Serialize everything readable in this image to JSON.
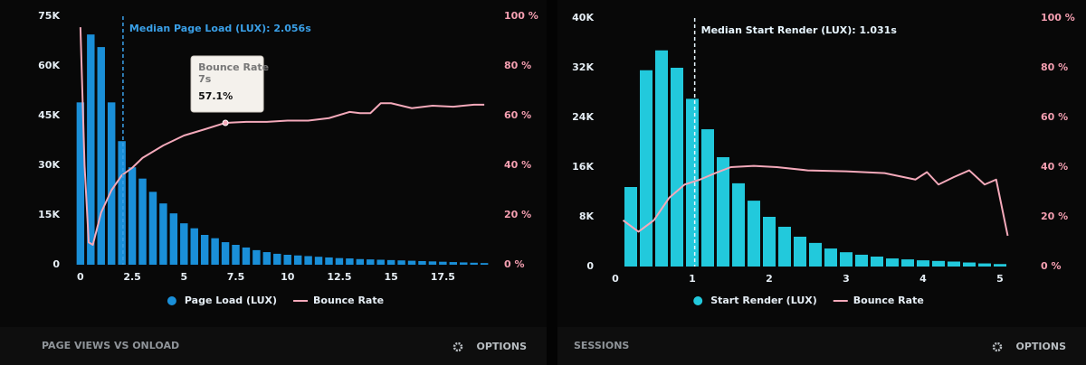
{
  "chart_data": [
    {
      "type": "histogram",
      "bins": [
        -0.25,
        0.25,
        0.75,
        1.25,
        1.75,
        2.25,
        2.75,
        3.25,
        3.75,
        4.25,
        4.75,
        5.25,
        5.75,
        6.25,
        6.75,
        7.25,
        7.75,
        8.25,
        8.75,
        9.25,
        9.75,
        10.25,
        10.75,
        11.25,
        11.75,
        12.25,
        12.75,
        13.25,
        13.75,
        14.25,
        14.75,
        15.25,
        15.75,
        16.25,
        16.75,
        17.25,
        17.75,
        18.25,
        18.75,
        19.25,
        19.75
      ],
      "xlim": [
        -0.3,
        19.8
      ],
      "xticks": [
        0,
        2.5,
        5,
        7.5,
        10,
        12.5,
        15,
        17.5
      ],
      "ylim": [
        0,
        75000
      ],
      "yticks": [
        {
          "value": 0,
          "label": "0"
        },
        {
          "value": 15000,
          "label": "15K"
        },
        {
          "value": 30000,
          "label": "30K"
        },
        {
          "value": 45000,
          "label": "45K"
        },
        {
          "value": 60000,
          "label": "60K"
        },
        {
          "value": 75000,
          "label": "75K"
        }
      ],
      "y2lim": [
        0,
        100
      ],
      "y2ticks": [
        {
          "value": 0,
          "label": "0 %"
        },
        {
          "value": 20,
          "label": "20 %"
        },
        {
          "value": 40,
          "label": "40 %"
        },
        {
          "value": 60,
          "label": "60 %"
        },
        {
          "value": 80,
          "label": "80 %"
        },
        {
          "value": 100,
          "label": "100 %"
        }
      ],
      "series": [
        {
          "name": "Page Load (LUX)",
          "color": "#1a8fd8",
          "values": [
            49000,
            69500,
            65700,
            49000,
            37300,
            29400,
            26000,
            22000,
            18500,
            15500,
            12500,
            11000,
            9000,
            8000,
            6800,
            6000,
            5200,
            4400,
            3800,
            3300,
            3000,
            2800,
            2600,
            2400,
            2200,
            2000,
            1900,
            1700,
            1600,
            1500,
            1400,
            1300,
            1200,
            1100,
            1000,
            900,
            800,
            700,
            600,
            500
          ]
        },
        {
          "name": "Bounce Rate",
          "color": "#f4a9ba",
          "axis": "y2",
          "x": [
            0,
            0.2,
            0.4,
            0.6,
            1,
            1.5,
            2,
            2.5,
            3,
            4,
            5,
            6,
            7,
            8,
            9,
            10,
            11,
            12,
            13,
            13.5,
            14,
            14.5,
            15,
            16,
            17,
            18,
            19,
            19.5
          ],
          "values": [
            95.6,
            40,
            9,
            8,
            21,
            30,
            36,
            39,
            43,
            48,
            52,
            54.5,
            57.1,
            57.5,
            57.5,
            58,
            58,
            59,
            61.5,
            61,
            61,
            65,
            65,
            63,
            64,
            63.6,
            64.4,
            64.4
          ]
        }
      ],
      "median": {
        "value": 2.056,
        "label": "Median Page Load (LUX): 2.056s"
      },
      "tooltip": {
        "title": "Bounce Rate",
        "x": {
          "value": 7,
          "label": "7s"
        },
        "value": {
          "value": 57.1,
          "label": "57.1%"
        }
      },
      "footer": "PAGE VIEWS VS ONLOAD",
      "options": "OPTIONS"
    },
    {
      "type": "histogram",
      "bins": [
        0.1,
        0.3,
        0.5,
        0.7,
        0.9,
        1.1,
        1.3,
        1.5,
        1.7,
        1.9,
        2.1,
        2.3,
        2.5,
        2.7,
        2.9,
        3.1,
        3.3,
        3.5,
        3.7,
        3.9,
        4.1,
        4.3,
        4.5,
        4.7,
        4.9,
        5.1
      ],
      "xlim": [
        -0.1,
        5.3
      ],
      "xticks": [
        0,
        1,
        2,
        3,
        4,
        5
      ],
      "ylim": [
        0,
        40000
      ],
      "yticks": [
        {
          "value": 0,
          "label": "0"
        },
        {
          "value": 8000,
          "label": "8K"
        },
        {
          "value": 16000,
          "label": "16K"
        },
        {
          "value": 24000,
          "label": "24K"
        },
        {
          "value": 32000,
          "label": "32K"
        },
        {
          "value": 40000,
          "label": "40K"
        }
      ],
      "y2lim": [
        0,
        100
      ],
      "y2ticks": [
        {
          "value": 0,
          "label": "0 %"
        },
        {
          "value": 20,
          "label": "20 %"
        },
        {
          "value": 40,
          "label": "40 %"
        },
        {
          "value": 60,
          "label": "60 %"
        },
        {
          "value": 80,
          "label": "80 %"
        },
        {
          "value": 100,
          "label": "100 %"
        }
      ],
      "series": [
        {
          "name": "Start Render (LUX)",
          "color": "#22c9dc",
          "values": [
            12800,
            31600,
            34800,
            32000,
            27000,
            22100,
            17600,
            13400,
            10600,
            8000,
            6400,
            4800,
            3800,
            2900,
            2300,
            1900,
            1600,
            1300,
            1150,
            1000,
            900,
            800,
            650,
            500,
            400
          ]
        },
        {
          "name": "Bounce Rate",
          "color": "#f4a9ba",
          "axis": "y2",
          "x": [
            0.1,
            0.3,
            0.5,
            0.7,
            0.9,
            1.1,
            1.3,
            1.5,
            1.8,
            2.1,
            2.5,
            3,
            3.5,
            3.9,
            4.05,
            4.2,
            4.4,
            4.6,
            4.8,
            4.95,
            5.1
          ],
          "values": [
            18.6,
            14,
            18.6,
            27.7,
            33,
            35,
            37.6,
            40,
            40.5,
            40,
            38.7,
            38.3,
            37.6,
            35,
            38,
            33,
            36,
            38.7,
            33,
            35,
            12.4
          ]
        }
      ],
      "median": {
        "value": 1.031,
        "label": "Median Start Render (LUX): 1.031s"
      },
      "footer": "SESSIONS",
      "options": "OPTIONS"
    }
  ]
}
